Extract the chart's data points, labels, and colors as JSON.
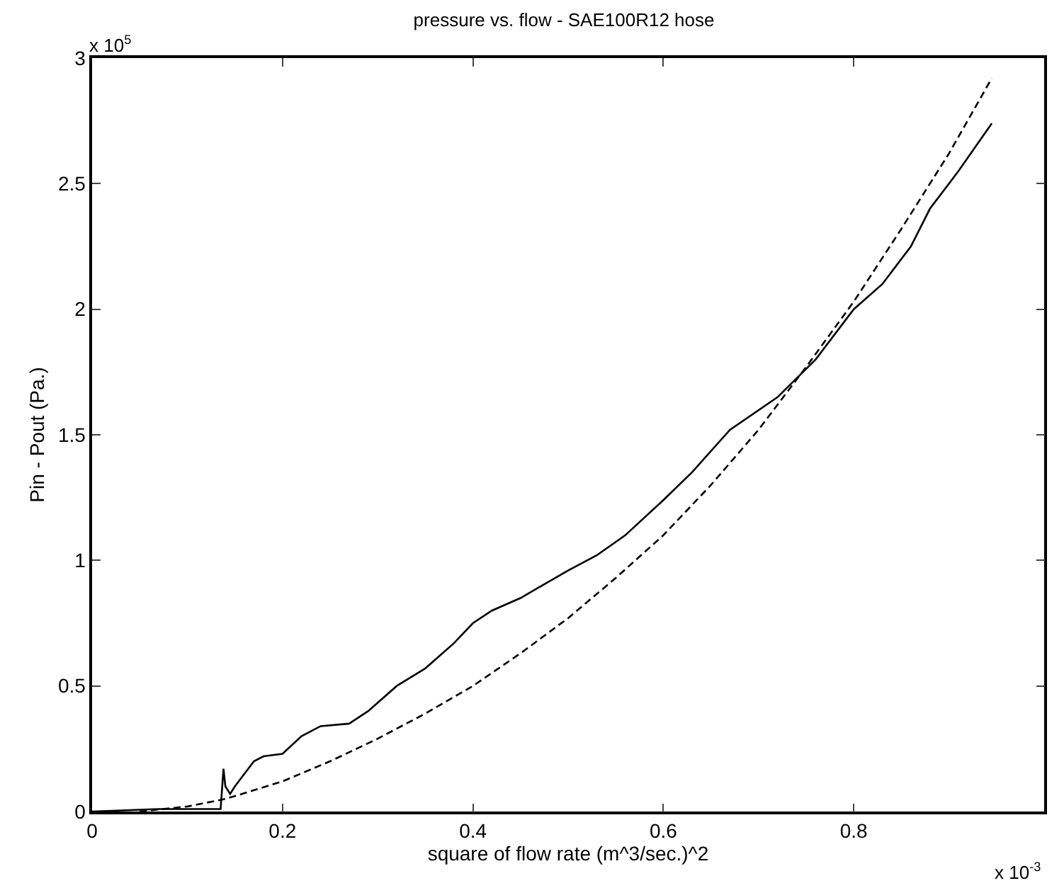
{
  "chart_data": {
    "type": "line",
    "title": "pressure vs. flow - SAE100R12 hose",
    "xlabel": "square of flow rate (m^3/sec.)^2",
    "ylabel": "Pin - Pout (Pa.)",
    "annotations": [
      "x 10$^{5}$",
      "x 10$^{-3}$"
    ],
    "xlim": [
      0,
      1
    ],
    "xticks": [
      0,
      0.2,
      0.4,
      0.6,
      0.8
    ],
    "ylim": [
      0,
      3
    ],
    "yticks": [
      0,
      0.5,
      1,
      1.5,
      2,
      2.5,
      3
    ],
    "grid": false,
    "marker": "none",
    "series": [
      {
        "color": "#000000",
        "line_style": "solid",
        "x": [
          0,
          0.07,
          0.135,
          0.138,
          0.14,
          0.145,
          0.15,
          0.17,
          0.18,
          0.2,
          0.22,
          0.24,
          0.27,
          0.29,
          0.32,
          0.35,
          0.38,
          0.4,
          0.42,
          0.45,
          0.5,
          0.53,
          0.56,
          0.6,
          0.63,
          0.67,
          0.72,
          0.76,
          0.8,
          0.83,
          0.86,
          0.88,
          0.91,
          0.945
        ],
        "values": [
          0,
          0.01,
          0.01,
          0.17,
          0.1,
          0.07,
          0.1,
          0.2,
          0.22,
          0.23,
          0.3,
          0.34,
          0.35,
          0.4,
          0.5,
          0.57,
          0.67,
          0.75,
          0.8,
          0.85,
          0.96,
          1.02,
          1.1,
          1.24,
          1.35,
          1.52,
          1.65,
          1.8,
          2.0,
          2.1,
          2.25,
          2.4,
          2.55,
          2.74
        ]
      },
      {
        "color": "#000000",
        "line_style": "dashed",
        "x": [
          0.05,
          0.1,
          0.14,
          0.2,
          0.25,
          0.3,
          0.35,
          0.4,
          0.45,
          0.5,
          0.55,
          0.6,
          0.65,
          0.7,
          0.75,
          0.8,
          0.85,
          0.9,
          0.945
        ],
        "values": [
          0,
          0.02,
          0.05,
          0.12,
          0.2,
          0.29,
          0.39,
          0.5,
          0.63,
          0.77,
          0.93,
          1.1,
          1.3,
          1.52,
          1.77,
          2.03,
          2.32,
          2.62,
          2.92
        ]
      }
    ]
  }
}
